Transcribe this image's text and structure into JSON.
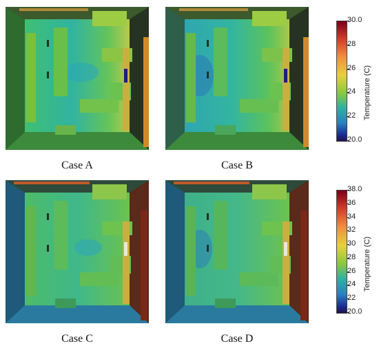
{
  "panels": [
    {
      "caption": "Case A"
    },
    {
      "caption": "Case B"
    },
    {
      "caption": "Case C"
    },
    {
      "caption": "Case D"
    }
  ],
  "colorbars": [
    {
      "title": "Temperature (C)",
      "min": 20.0,
      "max": 30.0,
      "ticks": [
        "30.0",
        "28",
        "26",
        "24",
        "22",
        "20.0"
      ]
    },
    {
      "title": "Temperature (C)",
      "min": 20.0,
      "max": 38.0,
      "ticks": [
        "38.0",
        "36",
        "34",
        "32",
        "30",
        "28",
        "26",
        "24",
        "22",
        "20.0"
      ]
    }
  ]
}
